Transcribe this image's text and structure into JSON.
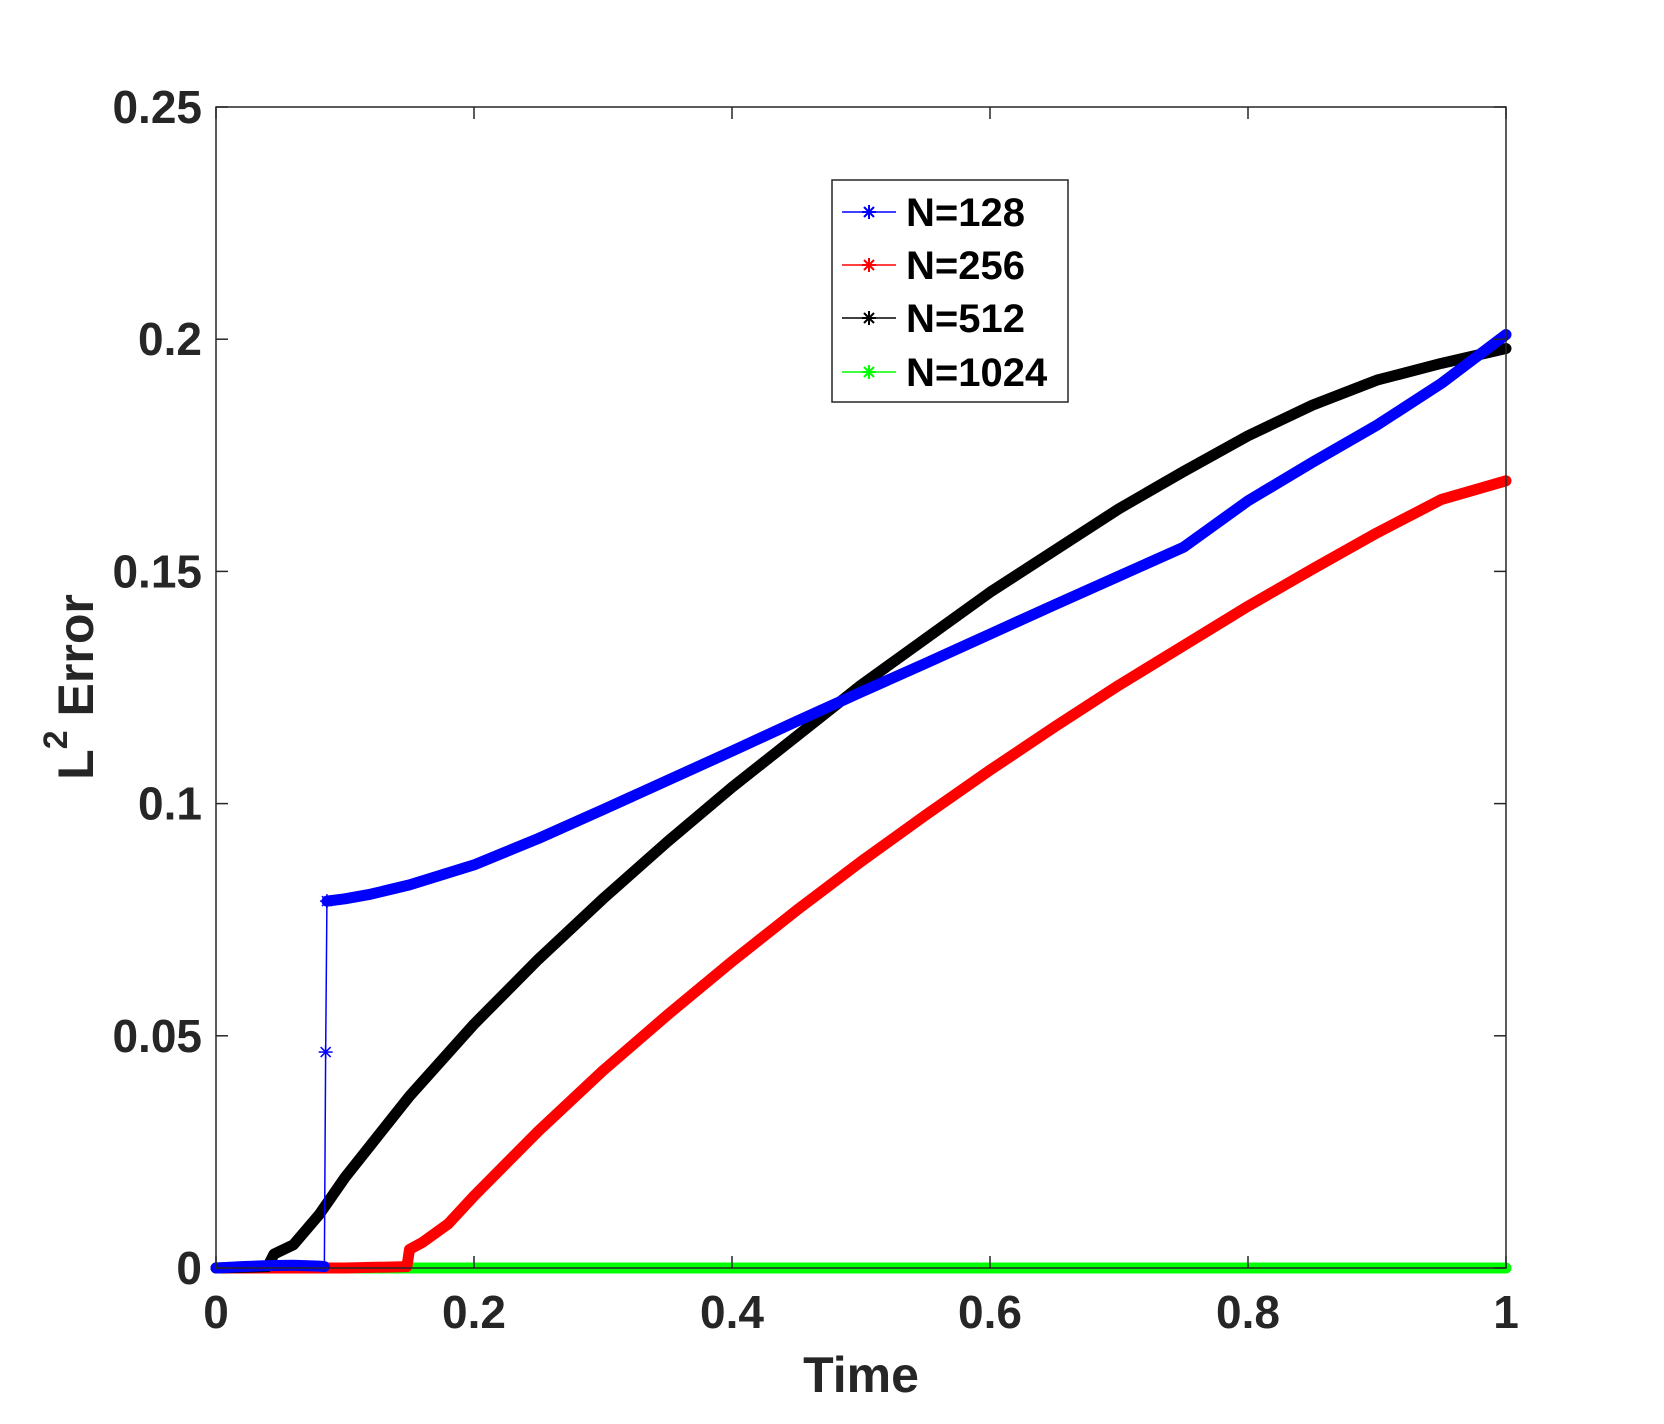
{
  "chart_data": {
    "type": "line",
    "title": "",
    "xlabel": "Time",
    "ylabel_base": "L",
    "ylabel_sup": "2",
    "ylabel_rest": "Error",
    "xlim": [
      0,
      1
    ],
    "ylim": [
      0,
      0.25
    ],
    "xticks": [
      0,
      0.2,
      0.4,
      0.6,
      0.8,
      1
    ],
    "xtick_labels": [
      "0",
      "0.2",
      "0.4",
      "0.6",
      "0.8",
      "1"
    ],
    "yticks": [
      0,
      0.05,
      0.1,
      0.15,
      0.2,
      0.25
    ],
    "ytick_labels": [
      "0",
      "0.05",
      "0.1",
      "0.15",
      "0.2",
      "0.25"
    ],
    "grid": false,
    "legend_position": "top-center",
    "marker": "asterisk",
    "series": [
      {
        "name": "N=128",
        "color": "#0000ff",
        "points": [
          [
            0.0,
            0.0
          ],
          [
            0.02,
            0.0003
          ],
          [
            0.04,
            0.0005
          ],
          [
            0.06,
            0.0006
          ],
          [
            0.08,
            0.0004
          ],
          [
            0.084,
            0.0003
          ],
          [
            0.085,
            0.0465
          ],
          [
            0.086,
            0.079
          ],
          [
            0.1,
            0.0795
          ],
          [
            0.12,
            0.0805
          ],
          [
            0.15,
            0.0825
          ],
          [
            0.2,
            0.0868
          ],
          [
            0.25,
            0.0925
          ],
          [
            0.3,
            0.0987
          ],
          [
            0.35,
            0.105
          ],
          [
            0.4,
            0.1113
          ],
          [
            0.45,
            0.1177
          ],
          [
            0.5,
            0.124
          ],
          [
            0.55,
            0.1302
          ],
          [
            0.6,
            0.1365
          ],
          [
            0.65,
            0.1428
          ],
          [
            0.7,
            0.149
          ],
          [
            0.75,
            0.1552
          ],
          [
            0.8,
            0.1652
          ],
          [
            0.85,
            0.1735
          ],
          [
            0.9,
            0.1815
          ],
          [
            0.95,
            0.1905
          ],
          [
            1.0,
            0.201
          ]
        ]
      },
      {
        "name": "N=256",
        "color": "#ff0000",
        "points": [
          [
            0.0,
            0.0
          ],
          [
            0.1,
            0.0
          ],
          [
            0.148,
            0.0003
          ],
          [
            0.15,
            0.004
          ],
          [
            0.16,
            0.0055
          ],
          [
            0.18,
            0.0095
          ],
          [
            0.2,
            0.0155
          ],
          [
            0.25,
            0.0295
          ],
          [
            0.3,
            0.0425
          ],
          [
            0.35,
            0.0545
          ],
          [
            0.4,
            0.066
          ],
          [
            0.45,
            0.077
          ],
          [
            0.5,
            0.0875
          ],
          [
            0.55,
            0.0975
          ],
          [
            0.6,
            0.1072
          ],
          [
            0.65,
            0.1165
          ],
          [
            0.7,
            0.1255
          ],
          [
            0.75,
            0.134
          ],
          [
            0.8,
            0.1425
          ],
          [
            0.85,
            0.1505
          ],
          [
            0.9,
            0.1583
          ],
          [
            0.95,
            0.1655
          ],
          [
            1.0,
            0.1695
          ]
        ]
      },
      {
        "name": "N=512",
        "color": "#000000",
        "points": [
          [
            0.0,
            0.0
          ],
          [
            0.04,
            0.0003
          ],
          [
            0.045,
            0.003
          ],
          [
            0.06,
            0.005
          ],
          [
            0.08,
            0.0115
          ],
          [
            0.1,
            0.0195
          ],
          [
            0.15,
            0.037
          ],
          [
            0.2,
            0.0525
          ],
          [
            0.25,
            0.0665
          ],
          [
            0.3,
            0.0795
          ],
          [
            0.35,
            0.0918
          ],
          [
            0.4,
            0.1035
          ],
          [
            0.45,
            0.1145
          ],
          [
            0.5,
            0.1255
          ],
          [
            0.55,
            0.1355
          ],
          [
            0.6,
            0.1455
          ],
          [
            0.65,
            0.1545
          ],
          [
            0.7,
            0.1635
          ],
          [
            0.75,
            0.1715
          ],
          [
            0.8,
            0.1792
          ],
          [
            0.85,
            0.1858
          ],
          [
            0.9,
            0.1912
          ],
          [
            0.95,
            0.1948
          ],
          [
            1.0,
            0.198
          ]
        ]
      },
      {
        "name": "N=1024",
        "color": "#00ff00",
        "points": [
          [
            0.0,
            0.0
          ],
          [
            0.25,
            0.0
          ],
          [
            0.5,
            0.0
          ],
          [
            0.75,
            0.0
          ],
          [
            1.0,
            0.0
          ]
        ]
      }
    ]
  }
}
